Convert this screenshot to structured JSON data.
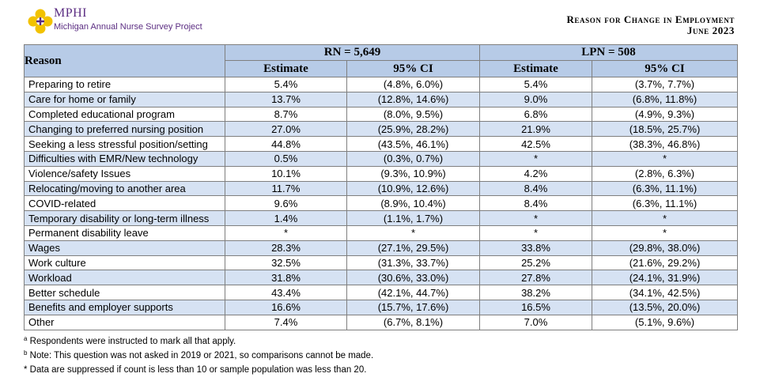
{
  "logo": {
    "name": "MPHI",
    "subtitle": "Michigan Annual Nurse Survey Project"
  },
  "report": {
    "title_line1": "Reason for Change in Employment",
    "title_line2": "June 2023"
  },
  "table": {
    "reason_header": "Reason",
    "groups": [
      {
        "label": "RN =   5,649"
      },
      {
        "label": "LPN =   508"
      }
    ],
    "sub_headers": [
      "Estimate",
      "95% CI",
      "Estimate",
      "95% CI"
    ],
    "rows": [
      {
        "reason": "Preparing to retire",
        "rn_est": "5.4%",
        "rn_ci": "(4.8%, 6.0%)",
        "lpn_est": "5.4%",
        "lpn_ci": "(3.7%, 7.7%)"
      },
      {
        "reason": "Care for home or family",
        "rn_est": "13.7%",
        "rn_ci": "(12.8%, 14.6%)",
        "lpn_est": "9.0%",
        "lpn_ci": "(6.8%, 11.8%)"
      },
      {
        "reason": "Completed educational program",
        "rn_est": "8.7%",
        "rn_ci": "(8.0%, 9.5%)",
        "lpn_est": "6.8%",
        "lpn_ci": "(4.9%, 9.3%)"
      },
      {
        "reason": "Changing to preferred nursing position",
        "rn_est": "27.0%",
        "rn_ci": "(25.9%, 28.2%)",
        "lpn_est": "21.9%",
        "lpn_ci": "(18.5%, 25.7%)"
      },
      {
        "reason": "Seeking a less stressful position/setting",
        "rn_est": "44.8%",
        "rn_ci": "(43.5%, 46.1%)",
        "lpn_est": "42.5%",
        "lpn_ci": "(38.3%, 46.8%)"
      },
      {
        "reason": "Difficulties with EMR/New technology",
        "rn_est": "0.5%",
        "rn_ci": "(0.3%, 0.7%)",
        "lpn_est": "*",
        "lpn_ci": "*"
      },
      {
        "reason": "Violence/safety Issues",
        "rn_est": "10.1%",
        "rn_ci": "(9.3%, 10.9%)",
        "lpn_est": "4.2%",
        "lpn_ci": "(2.8%, 6.3%)"
      },
      {
        "reason": "Relocating/moving to another area",
        "rn_est": "11.7%",
        "rn_ci": "(10.9%, 12.6%)",
        "lpn_est": "8.4%",
        "lpn_ci": "(6.3%, 11.1%)"
      },
      {
        "reason": "COVID-related",
        "rn_est": "9.6%",
        "rn_ci": "(8.9%, 10.4%)",
        "lpn_est": "8.4%",
        "lpn_ci": "(6.3%, 11.1%)"
      },
      {
        "reason": "Temporary disability or long-term illness",
        "rn_est": "1.4%",
        "rn_ci": "(1.1%, 1.7%)",
        "lpn_est": "*",
        "lpn_ci": "*"
      },
      {
        "reason": "Permanent disability leave",
        "rn_est": "*",
        "rn_ci": "*",
        "lpn_est": "*",
        "lpn_ci": "*"
      },
      {
        "reason": "Wages",
        "rn_est": "28.3%",
        "rn_ci": "(27.1%, 29.5%)",
        "lpn_est": "33.8%",
        "lpn_ci": "(29.8%, 38.0%)"
      },
      {
        "reason": "Work culture",
        "rn_est": "32.5%",
        "rn_ci": "(31.3%, 33.7%)",
        "lpn_est": "25.2%",
        "lpn_ci": "(21.6%, 29.2%)"
      },
      {
        "reason": "Workload",
        "rn_est": "31.8%",
        "rn_ci": "(30.6%, 33.0%)",
        "lpn_est": "27.8%",
        "lpn_ci": "(24.1%, 31.9%)"
      },
      {
        "reason": "Better schedule",
        "rn_est": "43.4%",
        "rn_ci": "(42.1%, 44.7%)",
        "lpn_est": "38.2%",
        "lpn_ci": "(34.1%, 42.5%)"
      },
      {
        "reason": "Benefits and employer supports",
        "rn_est": "16.6%",
        "rn_ci": "(15.7%, 17.6%)",
        "lpn_est": "16.5%",
        "lpn_ci": "(13.5%, 20.0%)"
      },
      {
        "reason": "Other",
        "rn_est": "7.4%",
        "rn_ci": "(6.7%, 8.1%)",
        "lpn_est": "7.0%",
        "lpn_ci": "(5.1%, 9.6%)"
      }
    ]
  },
  "notes": {
    "a_marker": "a",
    "a_text": "Respondents were instructed to mark all that apply.",
    "b_marker": "b",
    "b_text": "Note: This question was not asked in 2019 or 2021, so comparisons cannot be made.",
    "star_text": "* Data are suppressed if count is less than 10 or sample population was less than 20."
  },
  "colors": {
    "header_bg": "#b7cbe7",
    "row_shade": "#d6e2f3",
    "logo_purple": "#5b2d82",
    "logo_gold": "#f2c200"
  }
}
